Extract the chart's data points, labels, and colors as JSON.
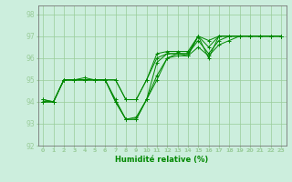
{
  "title": "",
  "xlabel": "Humidité relative (%)",
  "ylabel": "",
  "xlim": [
    -0.5,
    23.5
  ],
  "ylim": [
    92,
    98.4
  ],
  "yticks": [
    92,
    93,
    94,
    95,
    96,
    97,
    98
  ],
  "xtick_labels": [
    "0",
    "1",
    "2",
    "3",
    "4",
    "5",
    "6",
    "7",
    "8",
    "9",
    "10",
    "11",
    "12",
    "13",
    "14",
    "15",
    "16",
    "17",
    "18",
    "19",
    "20",
    "21",
    "22",
    "23"
  ],
  "bg_color": "#cceedd",
  "grid_color": "#99cc99",
  "line_color": "#008800",
  "marker_color": "#008800",
  "series": [
    [
      94,
      94,
      95,
      95,
      95,
      95,
      95,
      94,
      93.2,
      93.2,
      94.1,
      95.0,
      96.0,
      96.1,
      96.1,
      97.0,
      96.0,
      97.0,
      97.0,
      97.0,
      97.0,
      97.0,
      97.0,
      97.0
    ],
    [
      94,
      94,
      95,
      95,
      95,
      95,
      95,
      94,
      93.2,
      93.2,
      94.1,
      95.2,
      96.0,
      96.2,
      96.1,
      96.5,
      96.1,
      96.6,
      96.8,
      97.0,
      97.0,
      97.0,
      97.0,
      97.0
    ],
    [
      94,
      94,
      95,
      95,
      95,
      95,
      95,
      94.1,
      93.2,
      93.3,
      94.1,
      95.8,
      96.2,
      96.2,
      96.2,
      97.0,
      96.8,
      97.0,
      97.0,
      97.0,
      97.0,
      97.0,
      97.0,
      97.0
    ],
    [
      94.1,
      94,
      95,
      95,
      95,
      95,
      95,
      95,
      94.1,
      94.1,
      95.0,
      96.0,
      96.2,
      96.2,
      96.2,
      96.8,
      96.2,
      96.8,
      97.0,
      97.0,
      97.0,
      97.0,
      97.0,
      97.0
    ],
    [
      94.1,
      94,
      95,
      95,
      95.1,
      95,
      95,
      95,
      94.1,
      94.1,
      95.0,
      96.2,
      96.3,
      96.3,
      96.3,
      97.0,
      96.5,
      97.0,
      97.0,
      97.0,
      97.0,
      97.0,
      97.0,
      97.0
    ]
  ]
}
